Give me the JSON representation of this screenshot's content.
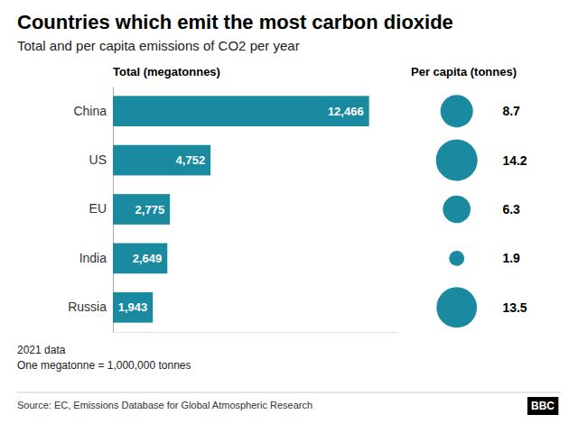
{
  "chart_data": {
    "type": "bar",
    "orientation": "horizontal",
    "title": "Countries which emit the most carbon dioxide",
    "subtitle": "Total and per capita emissions of CO2 per year",
    "categories": [
      "China",
      "US",
      "EU",
      "India",
      "Russia"
    ],
    "series": [
      {
        "name": "Total (megatonnes)",
        "type": "bar",
        "color": "#1a8aa0",
        "values": [
          12466,
          4752,
          2775,
          2649,
          1943
        ],
        "value_labels": [
          "12,466",
          "4,752",
          "2,775",
          "2,649",
          "1,943"
        ]
      },
      {
        "name": "Per capita (tonnes)",
        "type": "bubble",
        "color": "#1a8aa0",
        "values": [
          8.7,
          14.2,
          6.3,
          1.9,
          13.5
        ]
      }
    ],
    "xlim": [
      0,
      13800
    ],
    "tick_labels": false,
    "grid": false,
    "data_labels": true,
    "notes": [
      "2021 data",
      "One megatonne = 1,000,000 tonnes"
    ],
    "source": "Source: EC, Emissions Database for Global Atmospheric Research",
    "credit": "BBC"
  }
}
